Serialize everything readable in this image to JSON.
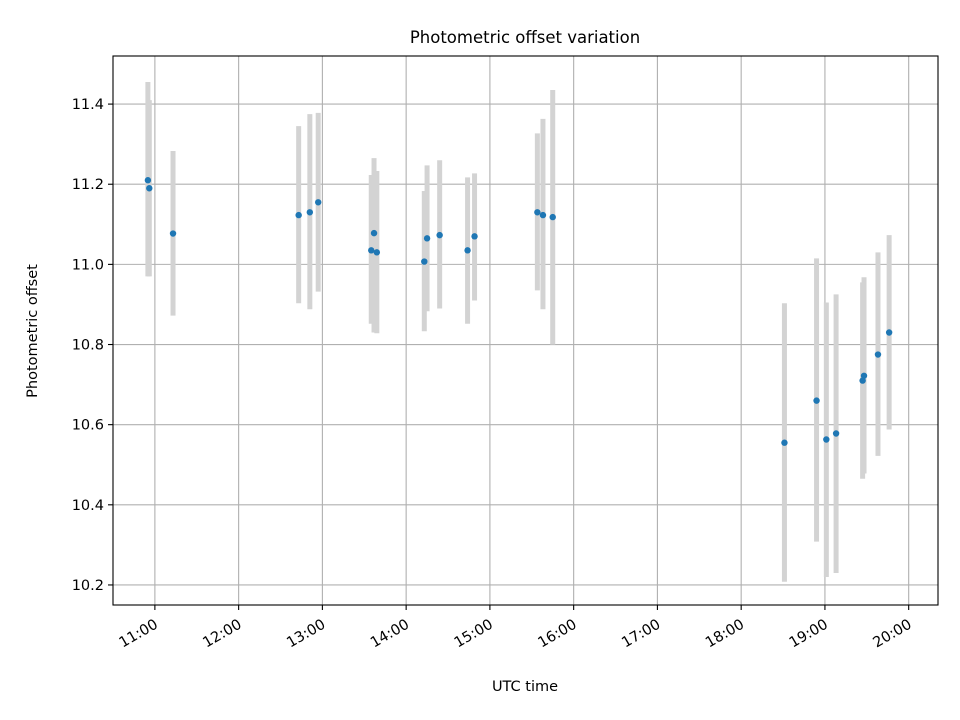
{
  "chart_data": {
    "type": "scatter",
    "title": "Photometric offset variation",
    "xlabel": "UTC time",
    "ylabel": "Photometric offset",
    "grid": true,
    "x_axis": {
      "kind": "time",
      "range": [
        "10:30",
        "20:21"
      ],
      "ticks": [
        "11:00",
        "12:00",
        "13:00",
        "14:00",
        "15:00",
        "16:00",
        "17:00",
        "18:00",
        "19:00",
        "20:00"
      ],
      "tick_label_rotation": 30
    },
    "y_axis": {
      "range": [
        10.15,
        11.52
      ],
      "ticks": [
        "10.2",
        "10.4",
        "10.6",
        "10.8",
        "11.0",
        "11.2",
        "11.4"
      ]
    },
    "series": [
      {
        "marker_color": "#1f77b4",
        "errorbar_color": "#d3d3d3",
        "points": [
          {
            "x": "10:55",
            "y": 11.21,
            "ylow": 10.97,
            "yhigh": 11.455
          },
          {
            "x": "10:56",
            "y": 11.19,
            "ylow": 10.97,
            "yhigh": 11.41
          },
          {
            "x": "11:13",
            "y": 11.077,
            "ylow": 10.872,
            "yhigh": 11.283
          },
          {
            "x": "12:43",
            "y": 11.123,
            "ylow": 10.903,
            "yhigh": 11.345
          },
          {
            "x": "12:51",
            "y": 11.13,
            "ylow": 10.888,
            "yhigh": 11.375
          },
          {
            "x": "12:57",
            "y": 11.155,
            "ylow": 10.932,
            "yhigh": 11.378
          },
          {
            "x": "13:35",
            "y": 11.035,
            "ylow": 10.852,
            "yhigh": 11.223
          },
          {
            "x": "13:37",
            "y": 11.078,
            "ylow": 10.83,
            "yhigh": 11.265
          },
          {
            "x": "13:39",
            "y": 11.03,
            "ylow": 10.828,
            "yhigh": 11.233
          },
          {
            "x": "14:13",
            "y": 11.007,
            "ylow": 10.833,
            "yhigh": 11.183
          },
          {
            "x": "14:15",
            "y": 11.065,
            "ylow": 10.883,
            "yhigh": 11.247
          },
          {
            "x": "14:24",
            "y": 11.073,
            "ylow": 10.89,
            "yhigh": 11.26
          },
          {
            "x": "14:44",
            "y": 11.035,
            "ylow": 10.852,
            "yhigh": 11.217
          },
          {
            "x": "14:49",
            "y": 11.07,
            "ylow": 10.91,
            "yhigh": 11.227
          },
          {
            "x": "15:34",
            "y": 11.13,
            "ylow": 10.935,
            "yhigh": 11.327
          },
          {
            "x": "15:38",
            "y": 11.123,
            "ylow": 10.888,
            "yhigh": 11.363
          },
          {
            "x": "15:45",
            "y": 11.118,
            "ylow": 10.8,
            "yhigh": 11.435
          },
          {
            "x": "18:31",
            "y": 10.555,
            "ylow": 10.208,
            "yhigh": 10.903
          },
          {
            "x": "18:54",
            "y": 10.66,
            "ylow": 10.308,
            "yhigh": 11.015
          },
          {
            "x": "19:01",
            "y": 10.563,
            "ylow": 10.22,
            "yhigh": 10.905
          },
          {
            "x": "19:08",
            "y": 10.578,
            "ylow": 10.23,
            "yhigh": 10.925
          },
          {
            "x": "19:27",
            "y": 10.71,
            "ylow": 10.465,
            "yhigh": 10.955
          },
          {
            "x": "19:28",
            "y": 10.722,
            "ylow": 10.478,
            "yhigh": 10.968
          },
          {
            "x": "19:38",
            "y": 10.775,
            "ylow": 10.522,
            "yhigh": 11.03
          },
          {
            "x": "19:46",
            "y": 10.83,
            "ylow": 10.588,
            "yhigh": 11.073
          }
        ]
      }
    ]
  }
}
